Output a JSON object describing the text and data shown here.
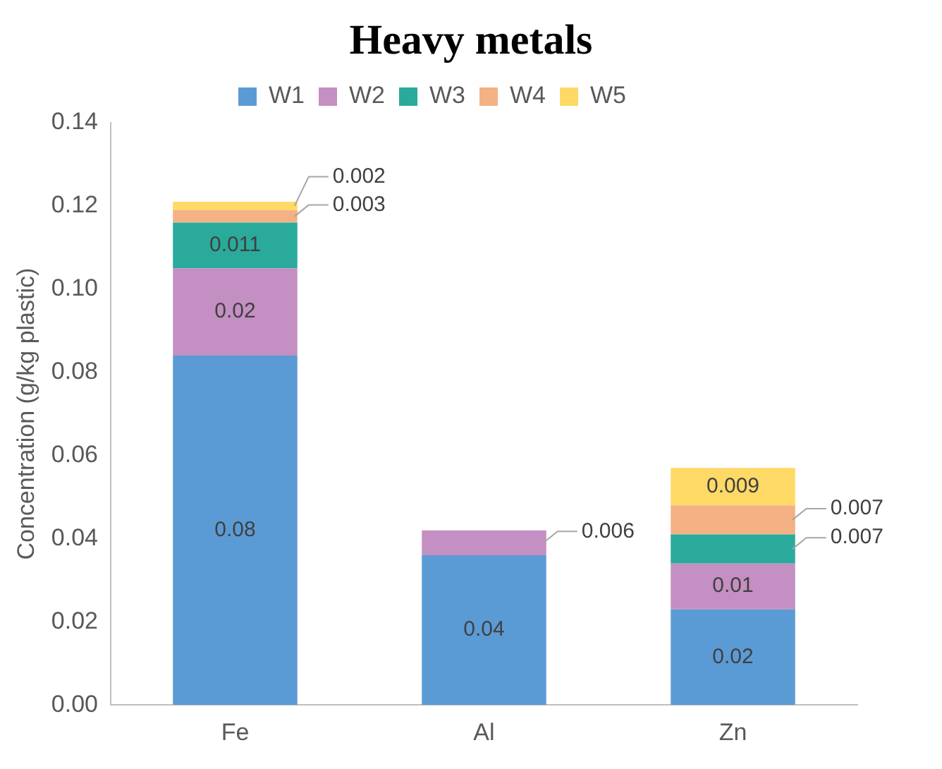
{
  "chart_data": {
    "type": "bar",
    "title": "Heavy metals",
    "ylabel": "Concentration (g/kg plastic)",
    "categories": [
      "Fe",
      "Al",
      "Zn"
    ],
    "stacked": true,
    "grid": false,
    "legend": "top",
    "ylim": [
      0,
      0.14
    ],
    "yticks": [
      {
        "value": 0,
        "label": "0.00"
      },
      {
        "value": 0.02,
        "label": "0.02"
      },
      {
        "value": 0.04,
        "label": "0.04"
      },
      {
        "value": 0.06,
        "label": "0.06"
      },
      {
        "value": 0.08,
        "label": "0.08"
      },
      {
        "value": 0.1,
        "label": "0.10"
      },
      {
        "value": 0.12,
        "label": "0.12"
      },
      {
        "value": 0.14,
        "label": "0.14"
      }
    ],
    "series": [
      {
        "name": "W1",
        "color": "#5b9bd5",
        "values": [
          0.084,
          0.036,
          0.023
        ],
        "value_labels": [
          "0.08",
          "0.04",
          "0.02"
        ]
      },
      {
        "name": "W2",
        "color": "#c48fc2",
        "values": [
          0.021,
          0.006,
          0.011
        ],
        "value_labels": [
          "0.02",
          "0.006",
          "0.01"
        ]
      },
      {
        "name": "W3",
        "color": "#2aaa9b",
        "values": [
          0.011,
          null,
          0.007
        ],
        "value_labels": [
          "0.011",
          null,
          "0.007"
        ]
      },
      {
        "name": "W4",
        "color": "#f4b183",
        "values": [
          0.003,
          null,
          0.007
        ],
        "value_labels": [
          "0.003",
          null,
          "0.007"
        ]
      },
      {
        "name": "W5",
        "color": "#ffd966",
        "values": [
          0.002,
          null,
          0.009
        ],
        "value_labels": [
          "0.002",
          null,
          "0.009"
        ]
      }
    ]
  }
}
